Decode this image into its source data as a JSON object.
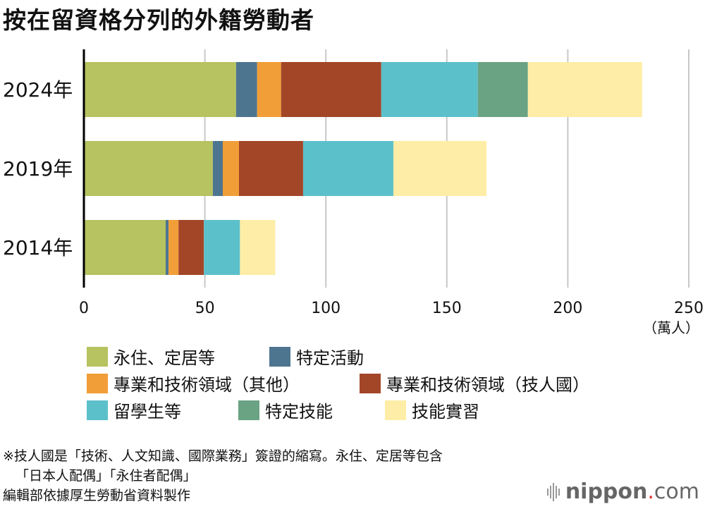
{
  "title": "按在留資格分列的外籍勞動者",
  "chart_data": {
    "type": "bar",
    "orientation": "horizontal",
    "stacked": true,
    "categories": [
      "2024年",
      "2019年",
      "2014年"
    ],
    "series": [
      {
        "name": "永住、定居等",
        "color": "#b7c260",
        "values": [
          62.9,
          53.3,
          33.8
        ]
      },
      {
        "name": "特定活動",
        "color": "#4e7590",
        "values": [
          8.7,
          4.1,
          1.2
        ]
      },
      {
        "name": "專業和技術領域（其他）",
        "color": "#f19e38",
        "values": [
          9.9,
          6.7,
          4.1
        ]
      },
      {
        "name": "專業和技術領域（技人國）",
        "color": "#a34628",
        "values": [
          41.4,
          26.5,
          10.5
        ]
      },
      {
        "name": "留學生等",
        "color": "#5cc0cb",
        "values": [
          39.9,
          37.3,
          14.9
        ]
      },
      {
        "name": "特定技能",
        "color": "#6aa384",
        "values": [
          20.7,
          0,
          0
        ]
      },
      {
        "name": "技能實習",
        "color": "#feeda6",
        "values": [
          47.2,
          38.5,
          14.6
        ]
      }
    ],
    "xlim": [
      0,
      250
    ],
    "xticks": [
      "0",
      "50",
      "100",
      "150",
      "200",
      "250"
    ],
    "xunit": "（萬人）",
    "grid": true,
    "legend_placement": "bottom"
  },
  "notes": [
    "※技人國是「技術、人文知識、國際業務」簽證的縮寫。永住、定居等包含",
    "「日本人配偶」「永住者配偶」",
    "編輯部依據厚生勞動省資料製作"
  ],
  "logo": {
    "name": "nippon",
    "dot": ".",
    "suffix": "com"
  }
}
